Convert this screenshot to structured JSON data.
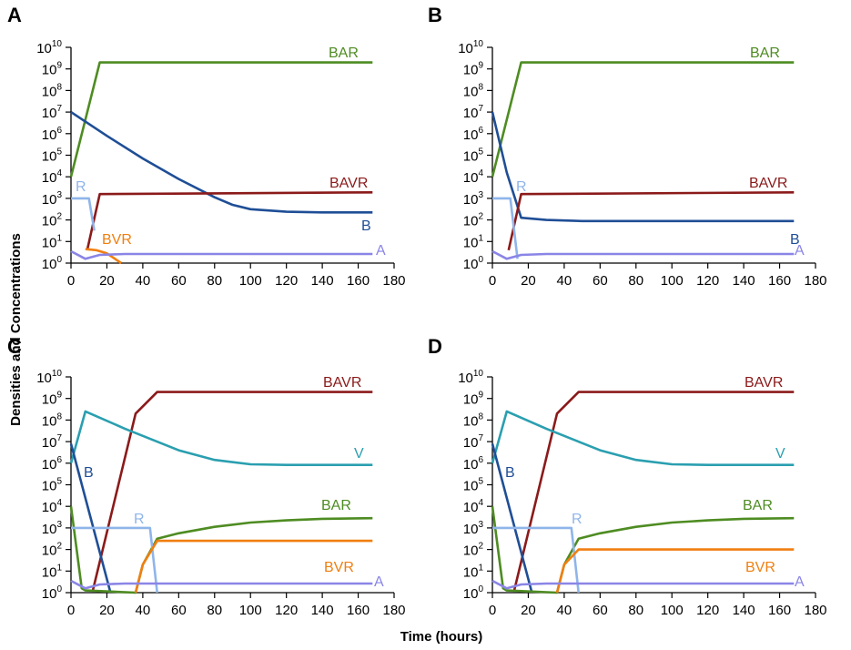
{
  "figure": {
    "xlabel": "Time (hours)",
    "ylabel": "Densities and Concentrations"
  },
  "colors": {
    "BAR": "#4e8c22",
    "BAVR": "#8b1a1a",
    "B": "#1f4e96",
    "R": "#8fb5ea",
    "A": "#8a85e6",
    "BVR": "#f07f10",
    "V": "#2a9fb0"
  },
  "chart_data": [
    {
      "panel": "A",
      "type": "line",
      "xlim": [
        0,
        180
      ],
      "ylim_log10": [
        0,
        10
      ],
      "xticks": [
        0,
        20,
        40,
        60,
        80,
        100,
        120,
        140,
        160,
        180
      ],
      "ytick_base": "10",
      "yticks_exp": [
        "0",
        "1",
        "2",
        "3",
        "4",
        "5",
        "6",
        "7",
        "8",
        "9",
        "10"
      ],
      "series": [
        {
          "name": "BAR",
          "label": "BAR",
          "points": [
            [
              0,
              4
            ],
            [
              16,
              9.3
            ],
            [
              168,
              9.3
            ]
          ]
        },
        {
          "name": "B",
          "label": "B",
          "points": [
            [
              0,
              7
            ],
            [
              20,
              5.9
            ],
            [
              40,
              4.85
            ],
            [
              60,
              3.9
            ],
            [
              80,
              3.05
            ],
            [
              90,
              2.7
            ],
            [
              100,
              2.5
            ],
            [
              120,
              2.38
            ],
            [
              140,
              2.35
            ],
            [
              168,
              2.35
            ]
          ]
        },
        {
          "name": "BAVR",
          "label": "BAVR",
          "points": [
            [
              9,
              0.6
            ],
            [
              16,
              3.2
            ],
            [
              168,
              3.28
            ]
          ]
        },
        {
          "name": "R",
          "label": "R",
          "points": [
            [
              0,
              3
            ],
            [
              10,
              3
            ],
            [
              13,
              1.5
            ]
          ]
        },
        {
          "name": "BVR",
          "label": "BVR",
          "points": [
            [
              8,
              0.65
            ],
            [
              14,
              0.6
            ],
            [
              20,
              0.45
            ],
            [
              28,
              0.0
            ]
          ]
        },
        {
          "name": "A",
          "label": "A",
          "points": [
            [
              0,
              0.55
            ],
            [
              8,
              0.2
            ],
            [
              16,
              0.38
            ],
            [
              30,
              0.42
            ],
            [
              168,
              0.42
            ]
          ]
        }
      ]
    },
    {
      "panel": "B",
      "type": "line",
      "xlim": [
        0,
        180
      ],
      "ylim_log10": [
        0,
        10
      ],
      "xticks": [
        0,
        20,
        40,
        60,
        80,
        100,
        120,
        140,
        160,
        180
      ],
      "ytick_base": "10",
      "yticks_exp": [
        "0",
        "1",
        "2",
        "3",
        "4",
        "5",
        "6",
        "7",
        "8",
        "9",
        "10"
      ],
      "series": [
        {
          "name": "BAR",
          "label": "BAR",
          "points": [
            [
              0,
              4
            ],
            [
              16,
              9.3
            ],
            [
              168,
              9.3
            ]
          ]
        },
        {
          "name": "B",
          "label": "B",
          "points": [
            [
              0,
              7
            ],
            [
              8,
              4.2
            ],
            [
              16,
              2.1
            ],
            [
              30,
              2.0
            ],
            [
              50,
              1.95
            ],
            [
              168,
              1.95
            ]
          ]
        },
        {
          "name": "BAVR",
          "label": "BAVR",
          "points": [
            [
              9,
              0.6
            ],
            [
              16,
              3.2
            ],
            [
              168,
              3.28
            ]
          ]
        },
        {
          "name": "R",
          "label": "R",
          "points": [
            [
              0,
              3
            ],
            [
              10,
              3
            ],
            [
              14,
              0.2
            ]
          ]
        },
        {
          "name": "A",
          "label": "A",
          "points": [
            [
              0,
              0.55
            ],
            [
              8,
              0.2
            ],
            [
              16,
              0.38
            ],
            [
              30,
              0.42
            ],
            [
              168,
              0.42
            ]
          ]
        }
      ]
    },
    {
      "panel": "C",
      "type": "line",
      "xlim": [
        0,
        180
      ],
      "ylim_log10": [
        0,
        10
      ],
      "xticks": [
        0,
        20,
        40,
        60,
        80,
        100,
        120,
        140,
        160,
        180
      ],
      "ytick_base": "10",
      "yticks_exp": [
        "0",
        "1",
        "2",
        "3",
        "4",
        "5",
        "6",
        "7",
        "8",
        "9",
        "10"
      ],
      "series": [
        {
          "name": "BAVR",
          "label": "BAVR",
          "points": [
            [
              12,
              0.05
            ],
            [
              36,
              8.3
            ],
            [
              48,
              9.3
            ],
            [
              168,
              9.3
            ]
          ]
        },
        {
          "name": "V",
          "label": "V",
          "points": [
            [
              0,
              6
            ],
            [
              8,
              8.4
            ],
            [
              30,
              7.6
            ],
            [
              60,
              6.6
            ],
            [
              80,
              6.15
            ],
            [
              100,
              5.95
            ],
            [
              120,
              5.92
            ],
            [
              168,
              5.92
            ]
          ]
        },
        {
          "name": "B",
          "label": "B",
          "points": [
            [
              0,
              6.9
            ],
            [
              22,
              0.0
            ]
          ]
        },
        {
          "name": "BAR",
          "label": "BAR",
          "points": [
            [
              0,
              4
            ],
            [
              6,
              0.2
            ],
            [
              8,
              0.1
            ],
            [
              36,
              0.0
            ],
            [
              40,
              1.3
            ],
            [
              48,
              2.5
            ],
            [
              60,
              2.75
            ],
            [
              80,
              3.05
            ],
            [
              100,
              3.25
            ],
            [
              120,
              3.35
            ],
            [
              140,
              3.42
            ],
            [
              168,
              3.45
            ]
          ]
        },
        {
          "name": "R",
          "label": "R",
          "points": [
            [
              0,
              3
            ],
            [
              44,
              3
            ],
            [
              48,
              0.0
            ]
          ]
        },
        {
          "name": "BVR",
          "label": "BVR",
          "points": [
            [
              36,
              0.0
            ],
            [
              40,
              1.3
            ],
            [
              48,
              2.4
            ],
            [
              168,
              2.4
            ]
          ]
        },
        {
          "name": "A",
          "label": "A",
          "points": [
            [
              0,
              0.55
            ],
            [
              8,
              0.2
            ],
            [
              16,
              0.38
            ],
            [
              30,
              0.42
            ],
            [
              168,
              0.42
            ]
          ]
        }
      ]
    },
    {
      "panel": "D",
      "type": "line",
      "xlim": [
        0,
        180
      ],
      "ylim_log10": [
        0,
        10
      ],
      "xticks": [
        0,
        20,
        40,
        60,
        80,
        100,
        120,
        140,
        160,
        180
      ],
      "ytick_base": "10",
      "yticks_exp": [
        "0",
        "1",
        "2",
        "3",
        "4",
        "5",
        "6",
        "7",
        "8",
        "9",
        "10"
      ],
      "series": [
        {
          "name": "BAVR",
          "label": "BAVR",
          "points": [
            [
              12,
              0.05
            ],
            [
              36,
              8.3
            ],
            [
              48,
              9.3
            ],
            [
              168,
              9.3
            ]
          ]
        },
        {
          "name": "V",
          "label": "V",
          "points": [
            [
              0,
              6
            ],
            [
              8,
              8.4
            ],
            [
              30,
              7.6
            ],
            [
              60,
              6.6
            ],
            [
              80,
              6.15
            ],
            [
              100,
              5.95
            ],
            [
              120,
              5.92
            ],
            [
              168,
              5.92
            ]
          ]
        },
        {
          "name": "B",
          "label": "B",
          "points": [
            [
              0,
              6.9
            ],
            [
              22,
              0.0
            ]
          ]
        },
        {
          "name": "BAR",
          "label": "BAR",
          "points": [
            [
              0,
              4
            ],
            [
              6,
              0.2
            ],
            [
              8,
              0.1
            ],
            [
              36,
              0.0
            ],
            [
              40,
              1.3
            ],
            [
              48,
              2.5
            ],
            [
              60,
              2.75
            ],
            [
              80,
              3.05
            ],
            [
              100,
              3.25
            ],
            [
              120,
              3.35
            ],
            [
              140,
              3.42
            ],
            [
              168,
              3.45
            ]
          ]
        },
        {
          "name": "R",
          "label": "R",
          "points": [
            [
              0,
              3
            ],
            [
              44,
              3
            ],
            [
              48,
              0.0
            ]
          ]
        },
        {
          "name": "BVR",
          "label": "BVR",
          "points": [
            [
              36,
              0.0
            ],
            [
              40,
              1.3
            ],
            [
              48,
              2.0
            ],
            [
              168,
              2.0
            ]
          ]
        },
        {
          "name": "A",
          "label": "A",
          "points": [
            [
              0,
              0.55
            ],
            [
              8,
              0.2
            ],
            [
              16,
              0.38
            ],
            [
              30,
              0.42
            ],
            [
              168,
              0.42
            ]
          ]
        }
      ]
    }
  ]
}
